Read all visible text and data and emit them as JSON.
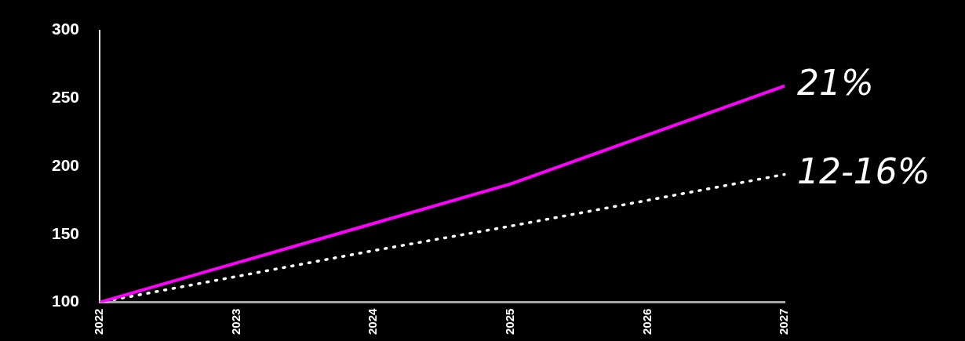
{
  "chart_data": {
    "type": "line",
    "categories": [
      "2022",
      "2023",
      "2024",
      "2025",
      "2026",
      "2027"
    ],
    "series": [
      {
        "color": "#ff00ff",
        "line_style": "solid",
        "values": [
          100,
          129,
          158,
          187,
          223,
          259
        ]
      },
      {
        "color": "#ffffff",
        "line_style": "dotted",
        "values": [
          100,
          119,
          138,
          156,
          175,
          194
        ]
      }
    ],
    "ylim": [
      100,
      300
    ],
    "yticks": [
      100,
      150,
      200,
      250,
      300
    ],
    "grid": false,
    "legend": false,
    "marker": "none",
    "annotations": [
      {
        "text": "21%",
        "x": "2027",
        "y": 259
      },
      {
        "text": "12-16%",
        "x": "2027",
        "y": 194
      }
    ]
  }
}
